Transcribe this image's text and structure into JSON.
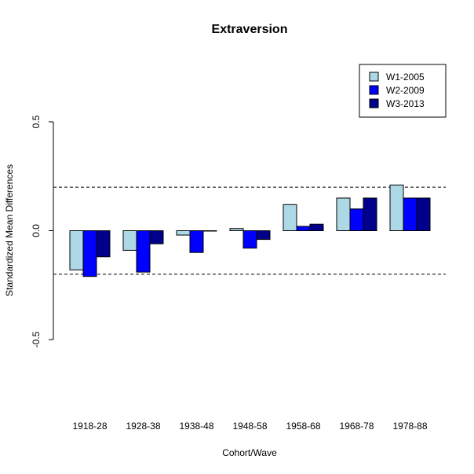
{
  "chart_data": {
    "type": "bar",
    "title": "Extraversion",
    "xlabel": "Cohort/Wave",
    "ylabel": "Standardized Mean Differences",
    "categories": [
      "1918-28",
      "1928-38",
      "1938-48",
      "1948-58",
      "1958-68",
      "1968-78",
      "1978-88"
    ],
    "series": [
      {
        "name": "W1-2005",
        "color": "#add8e6",
        "values": [
          -0.18,
          -0.09,
          -0.02,
          0.01,
          0.12,
          0.15,
          0.21
        ]
      },
      {
        "name": "W2-2009",
        "color": "#0000ff",
        "values": [
          -0.21,
          -0.19,
          -0.1,
          -0.08,
          0.02,
          0.1,
          0.15
        ]
      },
      {
        "name": "W3-2013",
        "color": "#00008b",
        "values": [
          -0.12,
          -0.06,
          0.0,
          -0.04,
          0.03,
          0.15,
          0.15
        ]
      }
    ],
    "ylim": [
      -0.5,
      0.5
    ],
    "yticks": [
      "-0.5",
      "0.0",
      "0.5"
    ],
    "yticks_values": [
      -0.5,
      0.0,
      0.5
    ],
    "reference_lines": [
      -0.2,
      0.2
    ],
    "legend": "top-right",
    "grid": false
  }
}
